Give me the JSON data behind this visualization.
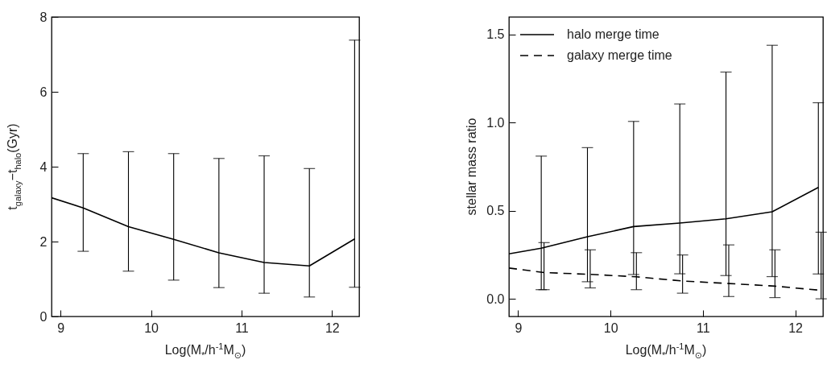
{
  "chart_data": [
    {
      "type": "line",
      "xlabel": "Log(M$_{*}$/h$^{-1}$M$_{⊙}$)",
      "ylabel": "t$_{galaxy}$−t$_{halo}$(Gyr)",
      "xlim": [
        8.9,
        12.3
      ],
      "xticks": [
        9,
        10,
        11,
        12
      ],
      "ylim": [
        0,
        8
      ],
      "yticks": [
        0,
        2,
        4,
        6,
        8
      ],
      "grid": false,
      "legend": false,
      "series": [
        {
          "color": "#000000",
          "line_style": "solid",
          "x": [
            8.9,
            9.25,
            9.75,
            10.25,
            10.75,
            11.25,
            11.75,
            12.25
          ],
          "values": [
            3.17,
            2.9,
            2.4,
            2.06,
            1.7,
            1.44,
            1.35,
            2.07
          ],
          "errors": [
            null,
            [
              1.74,
              4.35
            ],
            [
              1.21,
              4.4
            ],
            [
              0.97,
              4.35
            ],
            [
              0.77,
              4.22
            ],
            [
              0.62,
              4.29
            ],
            [
              0.52,
              3.95
            ],
            [
              0.78,
              7.38
            ]
          ]
        }
      ]
    },
    {
      "type": "line",
      "xlabel": "Log(M$_{*}$/h$^{-1}$M$_{⊙}$)",
      "ylabel": "stellar mass ratio",
      "xlim": [
        8.9,
        12.3
      ],
      "xticks": [
        9,
        10,
        11,
        12
      ],
      "ylim": [
        -0.1,
        1.6
      ],
      "yticks": [
        {
          "value": 0,
          "label": "0.0"
        },
        0.5,
        {
          "value": 1,
          "label": "1.0"
        },
        1.5
      ],
      "grid": false,
      "legend": "top left",
      "series": [
        {
          "name": "halo merge time",
          "color": "#000000",
          "line_style": "solid",
          "x": [
            8.9,
            9.25,
            9.75,
            10.25,
            10.75,
            11.25,
            11.75,
            12.25
          ],
          "values": [
            0.255,
            0.287,
            0.352,
            0.41,
            0.43,
            0.454,
            0.494,
            0.632
          ],
          "errors": [
            null,
            [
              0.052,
              0.81
            ],
            [
              0.097,
              0.858
            ],
            [
              0.138,
              1.007
            ],
            [
              0.142,
              1.106
            ],
            [
              0.132,
              1.287
            ],
            [
              0.126,
              1.439
            ],
            [
              0.141,
              1.113
            ]
          ]
        },
        {
          "name": "galaxy merge time",
          "color": "#000000",
          "line_style": "dashed",
          "x": [
            8.9,
            9.28,
            9.78,
            10.28,
            10.78,
            11.28,
            11.78,
            12.28
          ],
          "values": [
            0.175,
            0.149,
            0.139,
            0.125,
            0.101,
            0.087,
            0.072,
            0.048
          ],
          "errors": [
            null,
            [
              0.052,
              0.319
            ],
            [
              0.062,
              0.278
            ],
            [
              0.052,
              0.262
            ],
            [
              0.032,
              0.249
            ],
            [
              0.013,
              0.306
            ],
            [
              0.007,
              0.278
            ],
            [
              0.0,
              0.378
            ]
          ]
        }
      ]
    }
  ]
}
